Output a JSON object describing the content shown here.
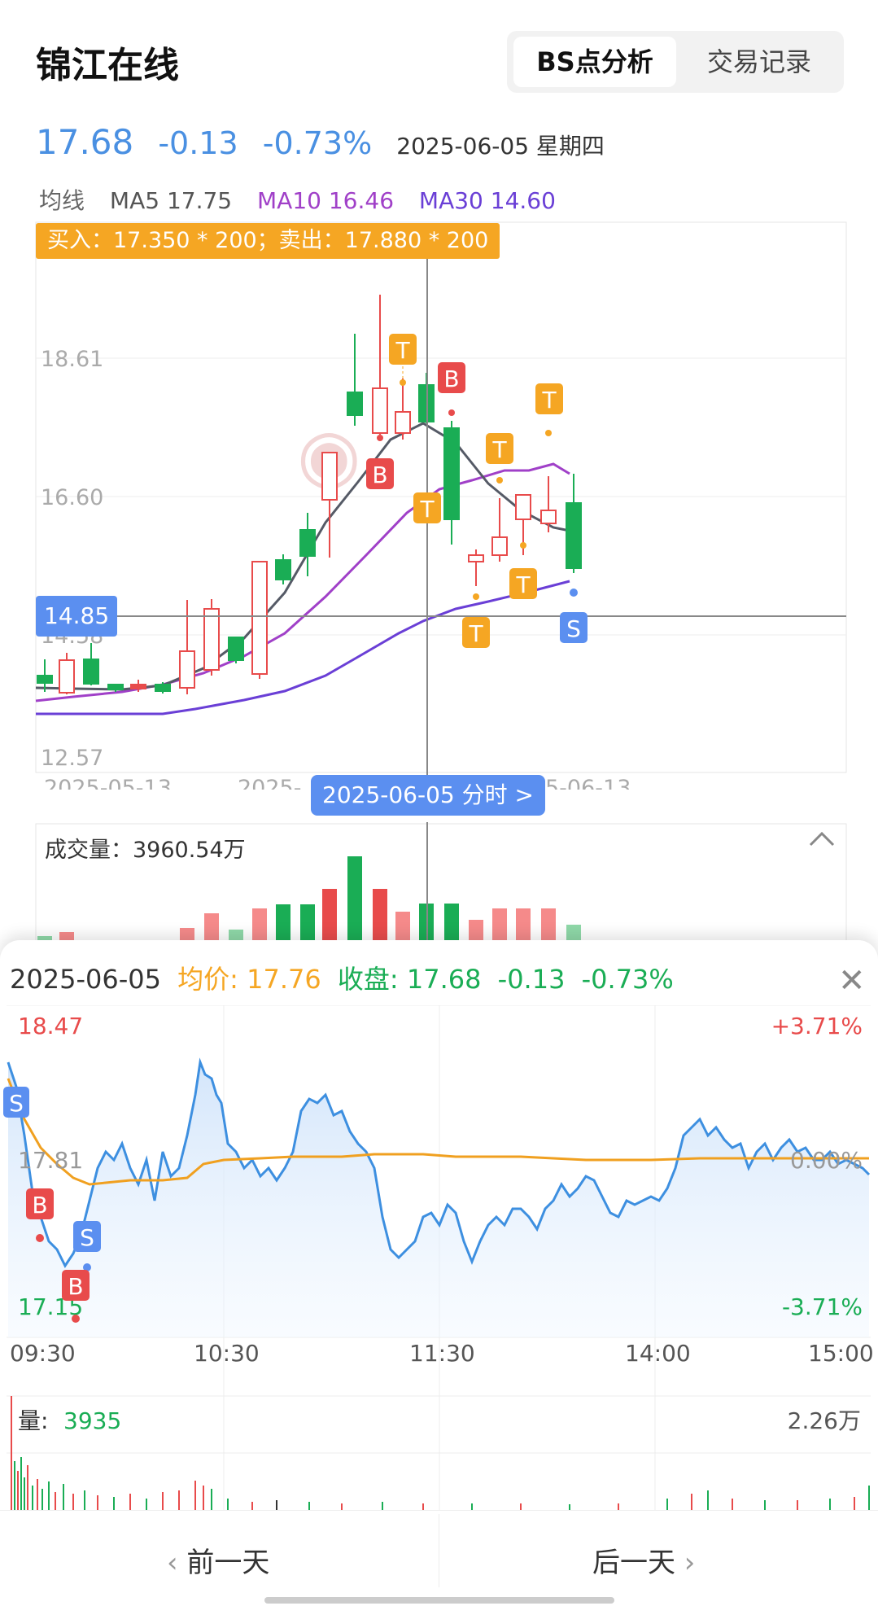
{
  "header": {
    "title": "锦江在线",
    "tabs": [
      "BS点分析",
      "交易记录"
    ]
  },
  "quote": {
    "price": "17.68",
    "change": "-0.13",
    "change_pct": "-0.73%",
    "date": "2025-06-05 星期四"
  },
  "ma": {
    "label": "均线",
    "ma5": "MA5 17.75",
    "ma10": "MA10 16.46",
    "ma30": "MA30 14.60"
  },
  "kline": {
    "tooltip": "买入：17.350 * 200；卖出：17.880 * 200",
    "y_ticks": [
      "18.61",
      "16.60",
      "14.58",
      "12.57"
    ],
    "x_ticks": [
      "2025-05-13",
      "2025-",
      "5-06-13"
    ],
    "crosshair_price": "14.85",
    "crosshair_date": "2025-06-05 分时 >",
    "markers": [
      "T",
      "B",
      "B",
      "T",
      "T",
      "T",
      "T",
      "T",
      "S"
    ]
  },
  "volume": {
    "label": "成交量：",
    "value": "3960.54万",
    "collapse_icon": "chevron-up-icon"
  },
  "intraday": {
    "date": "2025-06-05",
    "avg_label": "均价:",
    "avg_value": "17.76",
    "close_label": "收盘:",
    "close_value": "17.68",
    "change": "-0.13",
    "change_pct": "-0.73%",
    "y_left": [
      "18.47",
      "17.81",
      "17.15"
    ],
    "y_right": [
      "+3.71%",
      "0.00%",
      "-3.71%"
    ],
    "x_ticks": [
      "09:30",
      "10:30",
      "11:30",
      "14:00",
      "15:00"
    ],
    "markers": [
      "S",
      "B",
      "S",
      "B"
    ],
    "vol_label": "量:",
    "vol_value": "3935",
    "vol_max": "2.26万"
  },
  "nav": {
    "prev": "前一天",
    "next": "后一天"
  },
  "colors": {
    "up": "#e84b4b",
    "down": "#1aad55",
    "blue": "#4a90e2",
    "orange": "#f5a623",
    "purple": "#a040c8",
    "violet": "#6a3fd6"
  }
}
